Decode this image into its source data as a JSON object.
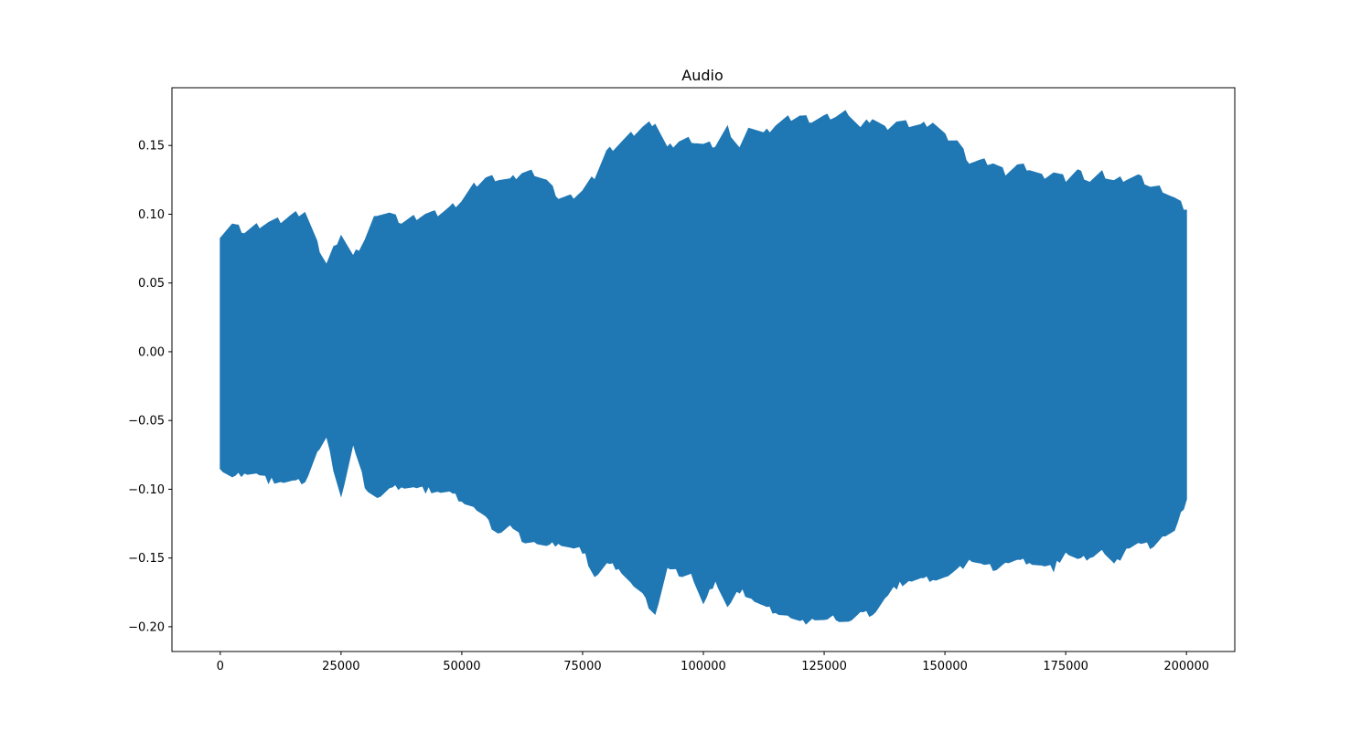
{
  "chart_data": {
    "type": "area",
    "title": "Audio",
    "xlabel": "",
    "ylabel": "",
    "xlim": [
      -10000,
      210000
    ],
    "ylim": [
      -0.218,
      0.192
    ],
    "x_ticks": [
      0,
      25000,
      50000,
      75000,
      100000,
      125000,
      150000,
      175000,
      200000
    ],
    "x_tick_labels": [
      "0",
      "25000",
      "50000",
      "75000",
      "100000",
      "125000",
      "150000",
      "175000",
      "200000"
    ],
    "y_ticks": [
      0.15,
      0.1,
      0.05,
      0.0,
      -0.05,
      -0.1,
      -0.15,
      -0.2
    ],
    "y_tick_labels": [
      "0.15",
      "0.10",
      "0.05",
      "0.00",
      "−0.05",
      "−0.10",
      "−0.15",
      "−0.20"
    ],
    "grid": false,
    "color": "#1f77b4",
    "series": [
      {
        "x": [
          0,
          2500,
          5000,
          7500,
          10000,
          12500,
          15000,
          17500,
          20000,
          22000,
          25000,
          27500,
          30000,
          32500,
          35000,
          37500,
          40000,
          42500,
          45000,
          47500,
          50000,
          52500,
          55000,
          57500,
          60000,
          62500,
          65000,
          67500,
          70000,
          72500,
          75000,
          77500,
          80000,
          82500,
          85000,
          87500,
          90000,
          92500,
          95000,
          97500,
          100000,
          102500,
          105000,
          107500,
          110000,
          112500,
          115000,
          117500,
          120000,
          122500,
          125000,
          127500,
          130000,
          132500,
          135000,
          137500,
          140000,
          142500,
          145000,
          147500,
          150000,
          152500,
          155000,
          157500,
          160000,
          162500,
          165000,
          167500,
          170000,
          172500,
          175000,
          177500,
          180000,
          182500,
          185000,
          187500,
          190000,
          192500,
          195000,
          197500,
          200000
        ],
        "upper": [
          0.085,
          0.092,
          0.087,
          0.091,
          0.094,
          0.095,
          0.099,
          0.102,
          0.078,
          0.063,
          0.086,
          0.068,
          0.082,
          0.101,
          0.1,
          0.094,
          0.097,
          0.1,
          0.1,
          0.104,
          0.11,
          0.12,
          0.126,
          0.126,
          0.124,
          0.13,
          0.13,
          0.124,
          0.112,
          0.112,
          0.117,
          0.127,
          0.145,
          0.151,
          0.157,
          0.163,
          0.167,
          0.147,
          0.153,
          0.154,
          0.15,
          0.15,
          0.162,
          0.148,
          0.164,
          0.158,
          0.165,
          0.169,
          0.171,
          0.168,
          0.17,
          0.171,
          0.174,
          0.162,
          0.17,
          0.162,
          0.167,
          0.165,
          0.164,
          0.167,
          0.156,
          0.153,
          0.138,
          0.138,
          0.137,
          0.13,
          0.135,
          0.133,
          0.127,
          0.13,
          0.125,
          0.131,
          0.124,
          0.129,
          0.124,
          0.126,
          0.127,
          0.12,
          0.118,
          0.111,
          0.103
        ],
        "lower": [
          -0.085,
          -0.093,
          -0.087,
          -0.089,
          -0.093,
          -0.094,
          -0.095,
          -0.093,
          -0.073,
          -0.064,
          -0.104,
          -0.068,
          -0.097,
          -0.106,
          -0.101,
          -0.097,
          -0.099,
          -0.1,
          -0.101,
          -0.103,
          -0.107,
          -0.113,
          -0.122,
          -0.131,
          -0.127,
          -0.136,
          -0.138,
          -0.143,
          -0.138,
          -0.143,
          -0.144,
          -0.163,
          -0.155,
          -0.156,
          -0.168,
          -0.178,
          -0.19,
          -0.158,
          -0.161,
          -0.161,
          -0.185,
          -0.165,
          -0.186,
          -0.173,
          -0.179,
          -0.186,
          -0.188,
          -0.192,
          -0.198,
          -0.193,
          -0.196,
          -0.193,
          -0.196,
          -0.191,
          -0.19,
          -0.18,
          -0.17,
          -0.166,
          -0.166,
          -0.164,
          -0.164,
          -0.16,
          -0.15,
          -0.155,
          -0.157,
          -0.153,
          -0.153,
          -0.152,
          -0.156,
          -0.157,
          -0.145,
          -0.152,
          -0.148,
          -0.144,
          -0.156,
          -0.142,
          -0.14,
          -0.141,
          -0.134,
          -0.132,
          -0.106
        ]
      }
    ]
  }
}
